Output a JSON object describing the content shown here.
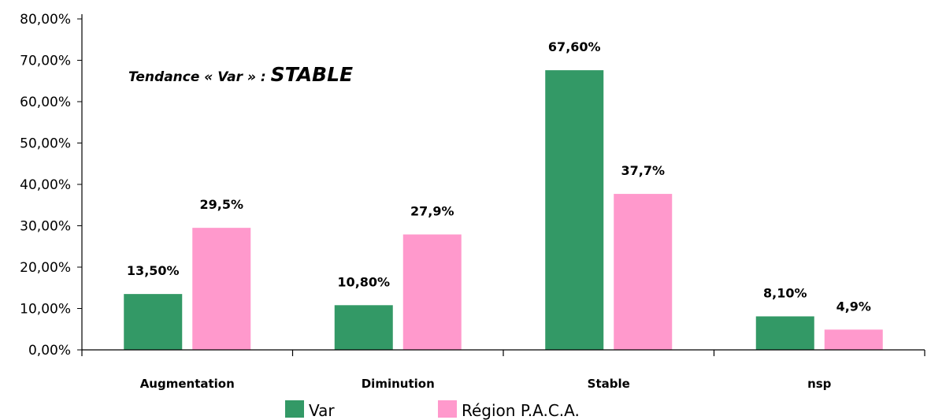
{
  "chart_data": {
    "type": "bar",
    "categories": [
      "Augmentation",
      "Diminution",
      "Stable",
      "nsp"
    ],
    "series": [
      {
        "name": "Var",
        "color": "#339966",
        "values": [
          13.5,
          10.8,
          67.6,
          8.1
        ],
        "labels": [
          "13,50%",
          "10,80%",
          "67,60%",
          "8,10%"
        ]
      },
      {
        "name": "Région P.A.C.A.",
        "color": "#ff99cc",
        "values": [
          29.5,
          27.9,
          37.7,
          4.9
        ],
        "labels": [
          "29,5%",
          "27,9%",
          "37,7%",
          "4,9%"
        ]
      }
    ],
    "ylim": [
      0,
      80
    ],
    "yticks": [
      "0,00%",
      "10,00%",
      "20,00%",
      "30,00%",
      "40,00%",
      "50,00%",
      "60,00%",
      "70,00%",
      "80,00%"
    ],
    "annotation": {
      "prefix": "Tendance « Var » : ",
      "emphasis": "STABLE"
    },
    "legend_position": "bottom",
    "grid": false
  }
}
